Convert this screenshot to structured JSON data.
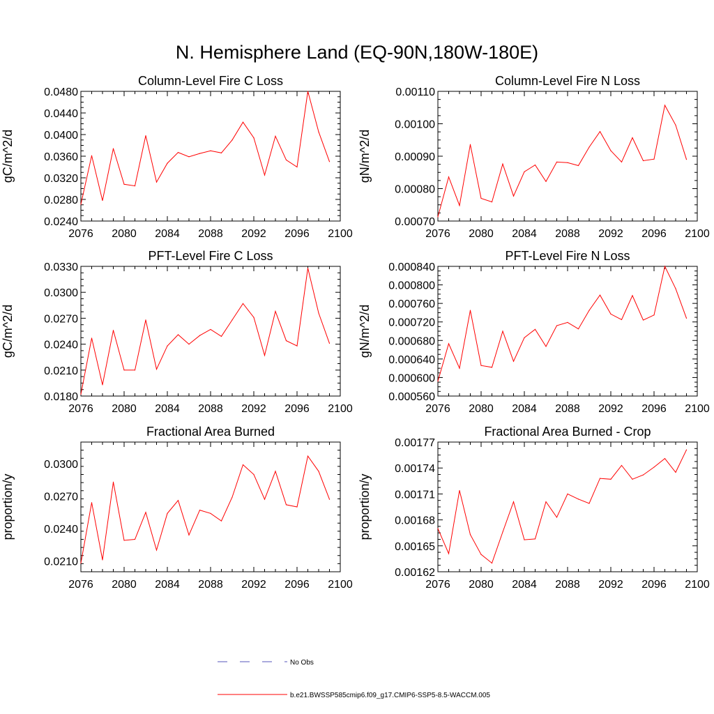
{
  "figure_title": "N. Hemisphere Land (EQ-90N,180W-180E)",
  "colors": {
    "model_line": "#ff0000",
    "obs_line": "#5555bb",
    "axes": "#000000"
  },
  "legend": {
    "obs_label": "No Obs",
    "model_label": "b.e21.BWSSP585cmip6.f09_g17.CMIP6-SSP5-8.5-WACCM.005"
  },
  "chart_data": [
    {
      "type": "line",
      "title": "Column-Level Fire C Loss",
      "xlabel": "",
      "ylabel": "gC/m^2/d",
      "xlim": [
        2076,
        2100
      ],
      "ylim": [
        0.024,
        0.048
      ],
      "xticks": [
        2076,
        2080,
        2084,
        2088,
        2092,
        2096,
        2100
      ],
      "yticks": [
        "0.0240",
        "0.0280",
        "0.0320",
        "0.0360",
        "0.0400",
        "0.0440",
        "0.0480"
      ],
      "x": [
        2076,
        2077,
        2078,
        2079,
        2080,
        2081,
        2082,
        2083,
        2084,
        2085,
        2086,
        2087,
        2088,
        2089,
        2090,
        2091,
        2092,
        2093,
        2094,
        2095,
        2096,
        2097,
        2098,
        2099
      ],
      "series": [
        {
          "name": "b.e21.BWSSP585cmip6.f09_g17.CMIP6-SSP5-8.5-WACCM.005",
          "values": [
            0.0271,
            0.0361,
            0.0278,
            0.0374,
            0.0308,
            0.0305,
            0.0398,
            0.0312,
            0.0347,
            0.0367,
            0.0359,
            0.0365,
            0.037,
            0.0366,
            0.039,
            0.0423,
            0.0394,
            0.0325,
            0.0397,
            0.0353,
            0.034,
            0.048,
            0.0405,
            0.035
          ]
        }
      ]
    },
    {
      "type": "line",
      "title": "Column-Level Fire N Loss",
      "xlabel": "",
      "ylabel": "gN/m^2/d",
      "xlim": [
        2076,
        2100
      ],
      "ylim": [
        0.0007,
        0.0011
      ],
      "xticks": [
        2076,
        2080,
        2084,
        2088,
        2092,
        2096,
        2100
      ],
      "yticks": [
        "0.00070",
        "0.00080",
        "0.00090",
        "0.00100",
        "0.00110"
      ],
      "x": [
        2076,
        2077,
        2078,
        2079,
        2080,
        2081,
        2082,
        2083,
        2084,
        2085,
        2086,
        2087,
        2088,
        2089,
        2090,
        2091,
        2092,
        2093,
        2094,
        2095,
        2096,
        2097,
        2098,
        2099
      ],
      "series": [
        {
          "name": "b.e21.BWSSP585cmip6.f09_g17.CMIP6-SSP5-8.5-WACCM.005",
          "values": [
            0.000713,
            0.000836,
            0.000748,
            0.000936,
            0.00077,
            0.000759,
            0.000876,
            0.000777,
            0.000852,
            0.000873,
            0.000822,
            0.000882,
            0.00088,
            0.000871,
            0.000928,
            0.000976,
            0.000917,
            0.000882,
            0.000957,
            0.000886,
            0.000891,
            0.001057,
            0.000996,
            0.00089
          ]
        }
      ]
    },
    {
      "type": "line",
      "title": "PFT-Level Fire C Loss",
      "xlabel": "",
      "ylabel": "gC/m^2/d",
      "xlim": [
        2076,
        2100
      ],
      "ylim": [
        0.018,
        0.033
      ],
      "xticks": [
        2076,
        2080,
        2084,
        2088,
        2092,
        2096,
        2100
      ],
      "yticks": [
        "0.0180",
        "0.0210",
        "0.0240",
        "0.0270",
        "0.0300",
        "0.0330"
      ],
      "x": [
        2076,
        2077,
        2078,
        2079,
        2080,
        2081,
        2082,
        2083,
        2084,
        2085,
        2086,
        2087,
        2088,
        2089,
        2090,
        2091,
        2092,
        2093,
        2094,
        2095,
        2096,
        2097,
        2098,
        2099
      ],
      "series": [
        {
          "name": "b.e21.BWSSP585cmip6.f09_g17.CMIP6-SSP5-8.5-WACCM.005",
          "values": [
            0.0182,
            0.0247,
            0.0193,
            0.0256,
            0.021,
            0.021,
            0.0268,
            0.0211,
            0.0238,
            0.0251,
            0.024,
            0.025,
            0.0257,
            0.0249,
            0.0268,
            0.0287,
            0.0271,
            0.0227,
            0.0278,
            0.0244,
            0.0238,
            0.0328,
            0.0276,
            0.0241
          ]
        }
      ]
    },
    {
      "type": "line",
      "title": "PFT-Level Fire N Loss",
      "xlabel": "",
      "ylabel": "gN/m^2/d",
      "xlim": [
        2076,
        2100
      ],
      "ylim": [
        0.00056,
        0.00084
      ],
      "xticks": [
        2076,
        2080,
        2084,
        2088,
        2092,
        2096,
        2100
      ],
      "yticks": [
        "0.000560",
        "0.000600",
        "0.000640",
        "0.000680",
        "0.000720",
        "0.000760",
        "0.000800",
        "0.000840"
      ],
      "x": [
        2076,
        2077,
        2078,
        2079,
        2080,
        2081,
        2082,
        2083,
        2084,
        2085,
        2086,
        2087,
        2088,
        2089,
        2090,
        2091,
        2092,
        2093,
        2094,
        2095,
        2096,
        2097,
        2098,
        2099
      ],
      "series": [
        {
          "name": "b.e21.BWSSP585cmip6.f09_g17.CMIP6-SSP5-8.5-WACCM.005",
          "values": [
            0.000592,
            0.000673,
            0.00062,
            0.000745,
            0.000626,
            0.000622,
            0.0007,
            0.000635,
            0.000686,
            0.000704,
            0.000667,
            0.000712,
            0.000719,
            0.000705,
            0.000745,
            0.000778,
            0.000737,
            0.000725,
            0.000777,
            0.000724,
            0.000735,
            0.00084,
            0.000792,
            0.000728
          ]
        }
      ]
    },
    {
      "type": "line",
      "title": "Fractional Area Burned",
      "xlabel": "",
      "ylabel": "proportion/y",
      "xlim": [
        2076,
        2100
      ],
      "ylim": [
        0.02,
        0.032
      ],
      "xticks": [
        2076,
        2080,
        2084,
        2088,
        2092,
        2096,
        2100
      ],
      "yticks": [
        "0.0210",
        "0.0240",
        "0.0270",
        "0.0300"
      ],
      "x": [
        2076,
        2077,
        2078,
        2079,
        2080,
        2081,
        2082,
        2083,
        2084,
        2085,
        2086,
        2087,
        2088,
        2089,
        2090,
        2091,
        2092,
        2093,
        2094,
        2095,
        2096,
        2097,
        2098,
        2099
      ],
      "series": [
        {
          "name": "b.e21.BWSSP585cmip6.f09_g17.CMIP6-SSP5-8.5-WACCM.005",
          "values": [
            0.0208,
            0.0264,
            0.0211,
            0.0283,
            0.0229,
            0.023,
            0.0255,
            0.022,
            0.0254,
            0.0266,
            0.0234,
            0.0257,
            0.0254,
            0.0247,
            0.0269,
            0.0299,
            0.029,
            0.0267,
            0.0293,
            0.0262,
            0.026,
            0.0307,
            0.0293,
            0.0267
          ]
        }
      ]
    },
    {
      "type": "line",
      "title": "Fractional Area Burned - Crop",
      "xlabel": "",
      "ylabel": "proportion/y",
      "xlim": [
        2076,
        2100
      ],
      "ylim": [
        0.00162,
        0.00177
      ],
      "xticks": [
        2076,
        2080,
        2084,
        2088,
        2092,
        2096,
        2100
      ],
      "yticks": [
        "0.00162",
        "0.00165",
        "0.00168",
        "0.00171",
        "0.00174",
        "0.00177"
      ],
      "x": [
        2076,
        2077,
        2078,
        2079,
        2080,
        2081,
        2082,
        2083,
        2084,
        2085,
        2086,
        2087,
        2088,
        2089,
        2090,
        2091,
        2092,
        2093,
        2094,
        2095,
        2096,
        2097,
        2098,
        2099
      ],
      "series": [
        {
          "name": "b.e21.BWSSP585cmip6.f09_g17.CMIP6-SSP5-8.5-WACCM.005",
          "values": [
            0.00167,
            0.001641,
            0.001714,
            0.001663,
            0.00164,
            0.00163,
            0.001666,
            0.001701,
            0.001657,
            0.001658,
            0.001701,
            0.001683,
            0.00171,
            0.001704,
            0.001699,
            0.001728,
            0.001727,
            0.001743,
            0.001727,
            0.001732,
            0.001741,
            0.001751,
            0.001735,
            0.001761
          ]
        }
      ]
    }
  ]
}
